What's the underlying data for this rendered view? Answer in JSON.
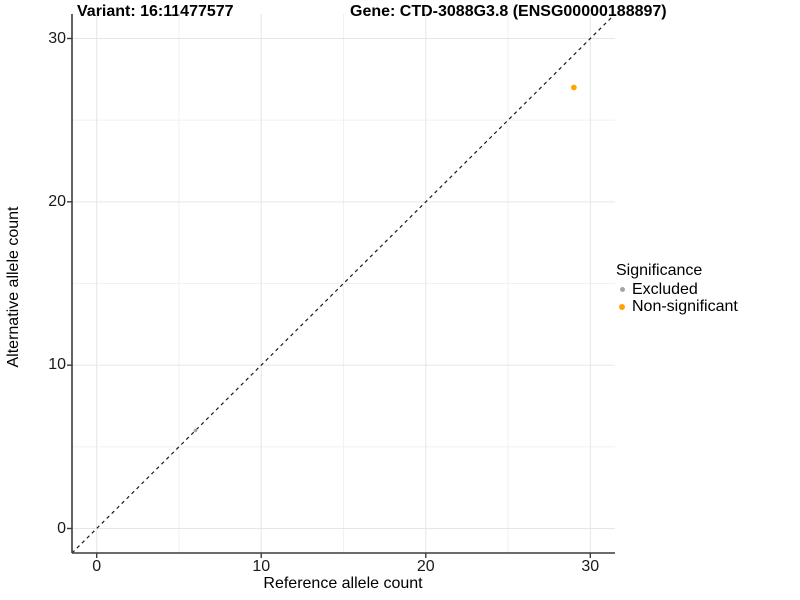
{
  "titles": {
    "variant": "Variant: 16:11477577",
    "gene": "Gene: CTD-3088G3.8 (ENSG00000188897)"
  },
  "chart_data": {
    "type": "scatter",
    "xlabel": "Reference allele count",
    "ylabel": "Alternative allele count",
    "xlim": [
      -1.5,
      31.5
    ],
    "ylim": [
      -1.5,
      31.5
    ],
    "x_ticks": [
      0,
      10,
      20,
      30
    ],
    "y_ticks": [
      0,
      10,
      20,
      30
    ],
    "x_minor_ticks": [
      5,
      15,
      25
    ],
    "y_minor_ticks": [
      5,
      15,
      25
    ],
    "grid": true,
    "grid_major_color": "#e6e6e6",
    "grid_minor_color": "#f1f1f1",
    "axis_line_color": "#3c3c3c",
    "identity_line": {
      "slope": 1,
      "intercept": 0,
      "style": "dashed",
      "color": "#1a1a1a"
    },
    "series": [
      {
        "name": "Excluded",
        "color": "#a5a5a5",
        "radius": 1.8,
        "points": [
          {
            "x": 6,
            "y": 6
          }
        ]
      },
      {
        "name": "Non-significant",
        "color": "#FFA500",
        "radius": 2.9,
        "points": [
          {
            "x": 29,
            "y": 27
          }
        ]
      }
    ]
  },
  "legend": {
    "title": "Significance",
    "position": "right",
    "items": [
      {
        "label": "Excluded",
        "color": "#a5a5a5",
        "dot_size": 5
      },
      {
        "label": "Non-significant",
        "color": "#FFA500",
        "dot_size": 6
      }
    ]
  }
}
